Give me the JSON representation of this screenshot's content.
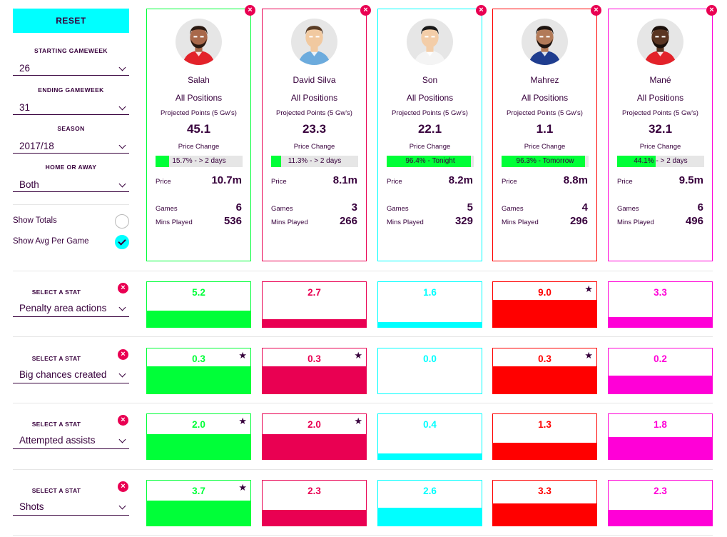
{
  "sidebar": {
    "reset_label": "RESET",
    "filters": [
      {
        "label": "STARTING GAMEWEEK",
        "value": "26"
      },
      {
        "label": "ENDING GAMEWEEK",
        "value": "31"
      },
      {
        "label": "SEASON",
        "value": "2017/18"
      },
      {
        "label": "HOME OR AWAY",
        "value": "Both"
      }
    ],
    "toggles": [
      {
        "label": "Show Totals",
        "checked": false
      },
      {
        "label": "Show Avg Per Game",
        "checked": true
      }
    ]
  },
  "labels": {
    "projected": "Projected Points (5 Gw's)",
    "price_change": "Price Change",
    "price": "Price",
    "games": "Games",
    "mins": "Mins Played",
    "select_stat": "SELECT A STAT",
    "close": "×",
    "star": "★"
  },
  "players": [
    {
      "name": "Salah",
      "position": "All Positions",
      "projected": "45.1",
      "price_change_text": "15.7% - > 2 days",
      "price_change_pct": 15.7,
      "price": "10.7m",
      "games": "6",
      "mins": "536",
      "color": "#00ff38",
      "skin": "#a8684a",
      "hair": "#2b1a12",
      "shirt": "#e3222a",
      "beard": true
    },
    {
      "name": "David Silva",
      "position": "All Positions",
      "projected": "23.3",
      "price_change_text": "11.3% - > 2 days",
      "price_change_pct": 11.3,
      "price": "8.1m",
      "games": "3",
      "mins": "266",
      "color": "#e90052",
      "skin": "#f1c9a0",
      "hair": "#5a3d26",
      "shirt": "#6cabdd",
      "beard": false
    },
    {
      "name": "Son",
      "position": "All Positions",
      "projected": "22.1",
      "price_change_text": "96.4% - Tonight",
      "price_change_pct": 96.4,
      "price": "8.2m",
      "games": "5",
      "mins": "329",
      "color": "#00ffff",
      "skin": "#f3cda8",
      "hair": "#1a1a1a",
      "shirt": "#f4f4f4",
      "beard": false
    },
    {
      "name": "Mahrez",
      "position": "All Positions",
      "projected": "1.1",
      "price_change_text": "96.3% - Tomorrow",
      "price_change_pct": 96.3,
      "price": "8.8m",
      "games": "4",
      "mins": "296",
      "color": "#ff0000",
      "skin": "#b27a58",
      "hair": "#1e1410",
      "shirt": "#1f3d8f",
      "beard": true
    },
    {
      "name": "Mané",
      "position": "All Positions",
      "projected": "32.1",
      "price_change_text": "44.1% - > 2 days",
      "price_change_pct": 44.1,
      "price": "9.5m",
      "games": "6",
      "mins": "496",
      "color": "#ff00d7",
      "skin": "#5a3522",
      "hair": "#1a0f0a",
      "shirt": "#e3222a",
      "beard": true
    }
  ],
  "stats": [
    {
      "name": "Penalty area actions",
      "values": [
        "5.2",
        "2.7",
        "1.6",
        "9.0",
        "3.3"
      ],
      "levels": [
        0.36,
        0.18,
        0.11,
        0.6,
        0.22
      ],
      "stars": [
        false,
        false,
        false,
        true,
        false
      ]
    },
    {
      "name": "Big chances created",
      "values": [
        "0.3",
        "0.3",
        "0.0",
        "0.3",
        "0.2"
      ],
      "levels": [
        0.6,
        0.6,
        0.0,
        0.6,
        0.4
      ],
      "stars": [
        true,
        true,
        false,
        true,
        false
      ]
    },
    {
      "name": "Attempted assists",
      "values": [
        "2.0",
        "2.0",
        "0.4",
        "1.3",
        "1.8"
      ],
      "levels": [
        0.56,
        0.56,
        0.12,
        0.37,
        0.5
      ],
      "stars": [
        true,
        true,
        false,
        false,
        false
      ]
    },
    {
      "name": "Shots",
      "values": [
        "3.7",
        "2.3",
        "2.6",
        "3.3",
        "2.3"
      ],
      "levels": [
        0.56,
        0.35,
        0.39,
        0.5,
        0.35
      ],
      "stars": [
        true,
        false,
        false,
        false,
        false
      ]
    }
  ]
}
